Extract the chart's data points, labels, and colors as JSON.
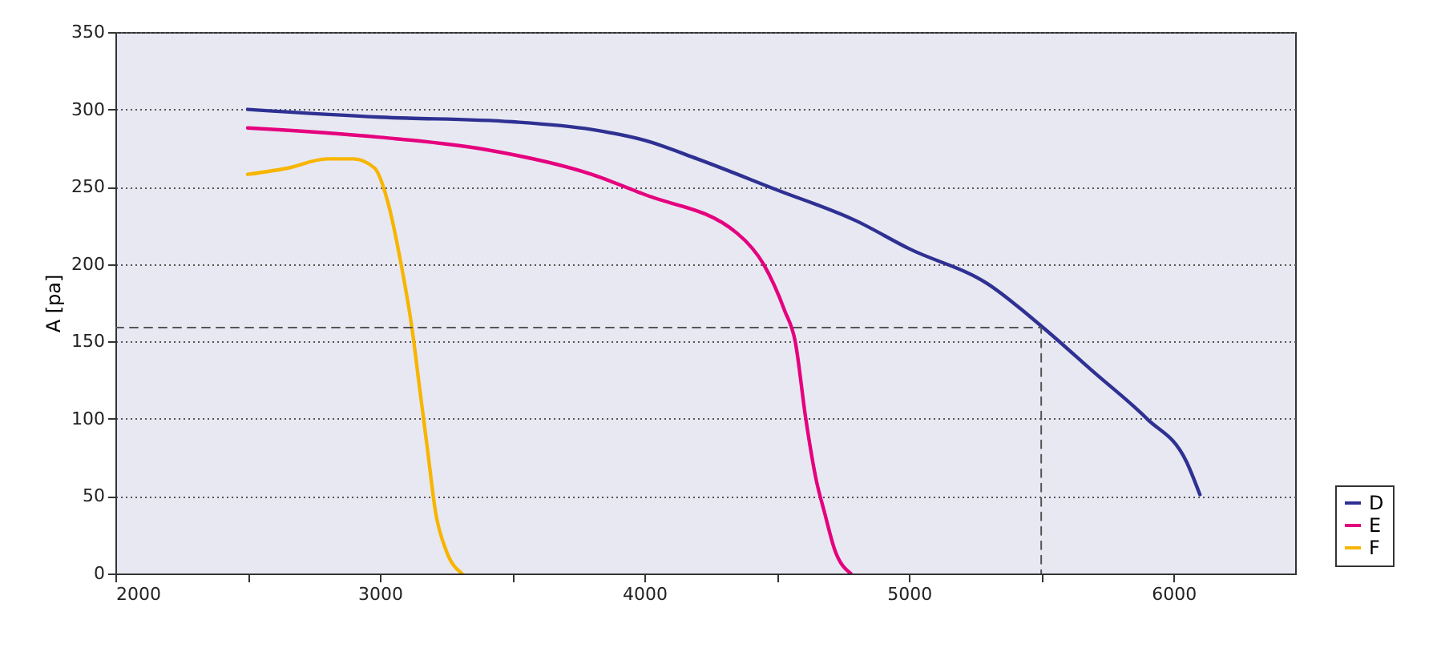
{
  "chart_data": {
    "type": "line",
    "ylabel": "A [pa]",
    "xlim": [
      2000,
      6460
    ],
    "ylim": [
      0,
      350
    ],
    "xticks": [
      2000,
      {
        "value": 2500,
        "label": null
      },
      3000,
      {
        "value": 3500,
        "label": null
      },
      4000,
      {
        "value": 4500,
        "label": null
      },
      5000,
      {
        "value": 5500,
        "label": null
      },
      6000
    ],
    "yticks": [
      0,
      50,
      100,
      150,
      200,
      250,
      300,
      350
    ],
    "grid": "y",
    "legend": "bottom right",
    "series": [
      {
        "name": "D",
        "color": "#2e3192",
        "x": [
          2500,
          3000,
          3500,
          3800,
          4000,
          4200,
          4500,
          4800,
          5000,
          5300,
          5500,
          5700,
          5900,
          6050,
          6100
        ],
        "values": [
          300,
          295,
          292,
          287,
          280,
          268,
          248,
          228,
          210,
          187,
          160,
          130,
          100,
          72,
          51
        ]
      },
      {
        "name": "E",
        "color": "#e5007e",
        "x": [
          2500,
          3000,
          3400,
          3800,
          4000,
          4350,
          4450,
          4530,
          4570,
          4610,
          4650,
          4680,
          4720,
          4780
        ],
        "values": [
          288,
          282,
          274,
          258,
          245,
          220,
          200,
          170,
          150,
          100,
          60,
          40,
          15,
          0
        ]
      },
      {
        "name": "F",
        "color": "#f7b500",
        "x": [
          2500,
          2650,
          2800,
          2900,
          2980,
          3030,
          3080,
          3120,
          3150,
          3180,
          3210,
          3250,
          3310
        ],
        "values": [
          258,
          262,
          268,
          268,
          262,
          240,
          200,
          160,
          120,
          80,
          40,
          15,
          0
        ]
      },
      {
        "color": "#555555",
        "line_style": "dashed",
        "x": [
          2000,
          5500,
          5500
        ],
        "values": [
          159,
          159,
          0
        ]
      }
    ]
  }
}
